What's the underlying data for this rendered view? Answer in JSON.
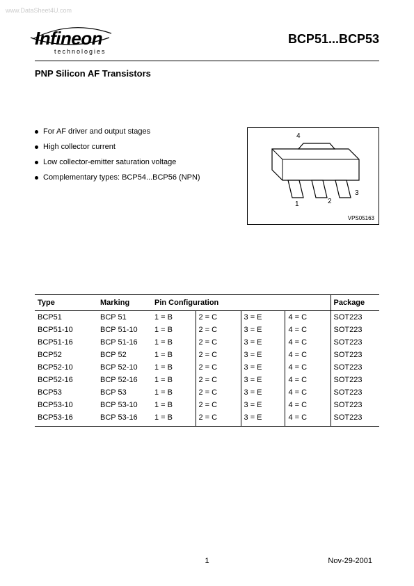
{
  "watermark": "www.DataSheet4U.com",
  "logo": {
    "name": "Infineon",
    "sub": "technologies"
  },
  "part_title": "BCP51...BCP53",
  "subtitle": "PNP Silicon AF Transistors",
  "features": [
    "For AF driver and output stages",
    "High collector current",
    "Low collector-emitter saturation voltage",
    "Complementary types: BCP54...BCP56 (NPN)"
  ],
  "package_drawing": {
    "pin_labels": [
      "1",
      "2",
      "3",
      "4"
    ],
    "code": "VPS05163"
  },
  "table": {
    "headers": [
      "Type",
      "Marking",
      "Pin Configuration",
      "Package"
    ],
    "rows": [
      {
        "type": "BCP51",
        "marking": "BCP 51",
        "pins": [
          "1 = B",
          "2 = C",
          "3 = E",
          "4 = C"
        ],
        "package": "SOT223"
      },
      {
        "type": "BCP51-10",
        "marking": "BCP 51-10",
        "pins": [
          "1 = B",
          "2 = C",
          "3 = E",
          "4 = C"
        ],
        "package": "SOT223"
      },
      {
        "type": "BCP51-16",
        "marking": "BCP 51-16",
        "pins": [
          "1 = B",
          "2 = C",
          "3 = E",
          "4 = C"
        ],
        "package": "SOT223"
      },
      {
        "type": "BCP52",
        "marking": "BCP 52",
        "pins": [
          "1 = B",
          "2 = C",
          "3 = E",
          "4 = C"
        ],
        "package": "SOT223"
      },
      {
        "type": "BCP52-10",
        "marking": "BCP 52-10",
        "pins": [
          "1 = B",
          "2 = C",
          "3 = E",
          "4 = C"
        ],
        "package": "SOT223"
      },
      {
        "type": "BCP52-16",
        "marking": "BCP 52-16",
        "pins": [
          "1 = B",
          "2 = C",
          "3 = E",
          "4 = C"
        ],
        "package": "SOT223"
      },
      {
        "type": "BCP53",
        "marking": "BCP 53",
        "pins": [
          "1 = B",
          "2 = C",
          "3 = E",
          "4 = C"
        ],
        "package": "SOT223"
      },
      {
        "type": "BCP53-10",
        "marking": "BCP 53-10",
        "pins": [
          "1 = B",
          "2 = C",
          "3 = E",
          "4 = C"
        ],
        "package": "SOT223"
      },
      {
        "type": "BCP53-16",
        "marking": "BCP 53-16",
        "pins": [
          "1 = B",
          "2 = C",
          "3 = E",
          "4 = C"
        ],
        "package": "SOT223"
      }
    ]
  },
  "footer": {
    "page": "1",
    "date": "Nov-29-2001"
  }
}
